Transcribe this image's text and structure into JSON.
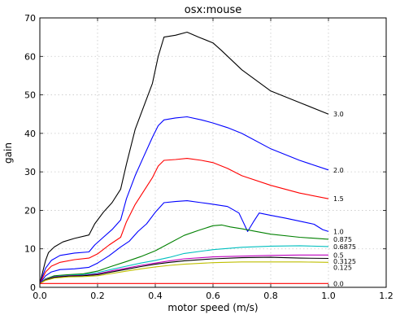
{
  "chart_data": {
    "type": "line",
    "title": "osx:mouse",
    "xlabel": "motor speed (m/s)",
    "ylabel": "gain",
    "xlim": [
      0.0,
      1.2
    ],
    "ylim": [
      0,
      70
    ],
    "xticks": [
      "0.0",
      "0.2",
      "0.4",
      "0.6",
      "0.8",
      "1.0",
      "1.2"
    ],
    "yticks": [
      "0",
      "10",
      "20",
      "30",
      "40",
      "50",
      "60",
      "70"
    ],
    "grid": true,
    "series": [
      {
        "name": "3.0",
        "color": "#000000",
        "x": [
          0,
          0.01,
          0.02,
          0.03,
          0.05,
          0.08,
          0.12,
          0.17,
          0.19,
          0.22,
          0.25,
          0.28,
          0.3,
          0.33,
          0.36,
          0.39,
          0.41,
          0.43,
          0.47,
          0.51,
          0.55,
          0.6,
          0.63,
          0.7,
          0.8,
          0.9,
          1.0
        ],
        "y": [
          1,
          4,
          7,
          9,
          10.5,
          11.8,
          12.7,
          13.6,
          16.5,
          19.5,
          22,
          25.5,
          32,
          41,
          47,
          53,
          60,
          65,
          65.5,
          66.3,
          65,
          63.5,
          61.5,
          56.5,
          51,
          48,
          45
        ]
      },
      {
        "name": "2.0",
        "color": "#0000ff",
        "x": [
          0,
          0.01,
          0.02,
          0.04,
          0.07,
          0.12,
          0.17,
          0.19,
          0.22,
          0.25,
          0.28,
          0.3,
          0.33,
          0.36,
          0.39,
          0.41,
          0.43,
          0.47,
          0.51,
          0.56,
          0.6,
          0.65,
          0.7,
          0.8,
          0.9,
          1.0
        ],
        "y": [
          1,
          3,
          5,
          7,
          8.3,
          8.9,
          9.2,
          11,
          13,
          15,
          17.5,
          23,
          29,
          34,
          39,
          42,
          43.5,
          44,
          44.3,
          43.5,
          42.7,
          41.5,
          40,
          36,
          33,
          30.5
        ]
      },
      {
        "name": "1.5",
        "color": "#ff0000",
        "x": [
          0,
          0.01,
          0.02,
          0.04,
          0.07,
          0.12,
          0.17,
          0.2,
          0.24,
          0.28,
          0.3,
          0.33,
          0.36,
          0.39,
          0.41,
          0.43,
          0.47,
          0.51,
          0.56,
          0.6,
          0.65,
          0.7,
          0.8,
          0.9,
          1.0
        ],
        "y": [
          1,
          2.5,
          4,
          5.5,
          6.5,
          7.2,
          7.6,
          8.7,
          11,
          13,
          17,
          21.5,
          25,
          28.5,
          31.5,
          33,
          33.2,
          33.5,
          33,
          32.4,
          30.9,
          29,
          26.5,
          24.5,
          23
        ]
      },
      {
        "name": "1.0",
        "color": "#0000ff",
        "x": [
          0,
          0.02,
          0.04,
          0.07,
          0.12,
          0.17,
          0.2,
          0.24,
          0.28,
          0.31,
          0.34,
          0.37,
          0.4,
          0.43,
          0.47,
          0.51,
          0.56,
          0.6,
          0.65,
          0.69,
          0.72,
          0.74,
          0.76,
          0.8,
          0.85,
          0.9,
          0.95,
          0.98,
          1.0
        ],
        "y": [
          1,
          3,
          4,
          4.6,
          4.8,
          5.2,
          6.3,
          8.2,
          10.5,
          12,
          14.5,
          16.5,
          19.5,
          22,
          22.3,
          22.5,
          22,
          21.6,
          21,
          19.3,
          14.5,
          17,
          19.3,
          18.7,
          18,
          17.2,
          16.4,
          15,
          14.5
        ]
      },
      {
        "name": "0.875",
        "color": "#008000",
        "x": [
          0,
          0.02,
          0.05,
          0.1,
          0.15,
          0.2,
          0.25,
          0.3,
          0.35,
          0.4,
          0.45,
          0.5,
          0.55,
          0.6,
          0.63,
          0.66,
          0.7,
          0.75,
          0.8,
          0.9,
          1.0
        ],
        "y": [
          1,
          2.2,
          3,
          3.3,
          3.5,
          4.2,
          5.5,
          6.7,
          8,
          9.5,
          11.5,
          13.5,
          14.8,
          16,
          16.2,
          15.7,
          15.2,
          14.5,
          13.8,
          13,
          12.5
        ]
      },
      {
        "name": "0.6875",
        "color": "#00bfbf",
        "x": [
          0,
          0.02,
          0.05,
          0.1,
          0.15,
          0.2,
          0.25,
          0.3,
          0.35,
          0.4,
          0.45,
          0.5,
          0.6,
          0.7,
          0.8,
          0.9,
          1.0
        ],
        "y": [
          1,
          2,
          2.8,
          3.1,
          3.3,
          3.8,
          4.7,
          5.5,
          6.3,
          7,
          7.8,
          8.8,
          9.8,
          10.4,
          10.7,
          10.8,
          10.6
        ]
      },
      {
        "name": "0.5",
        "color": "#bf00bf",
        "x": [
          0,
          0.02,
          0.05,
          0.1,
          0.15,
          0.2,
          0.25,
          0.3,
          0.35,
          0.4,
          0.45,
          0.5,
          0.6,
          0.7,
          0.8,
          0.9,
          1.0
        ],
        "y": [
          1,
          2,
          2.7,
          3,
          3.1,
          3.5,
          4.3,
          5,
          5.7,
          6.3,
          6.9,
          7.4,
          7.9,
          8.1,
          8.3,
          8.4,
          8.4
        ]
      },
      {
        "name": "0.3125",
        "color": "#000000",
        "x": [
          0,
          0.02,
          0.05,
          0.1,
          0.15,
          0.2,
          0.25,
          0.3,
          0.35,
          0.4,
          0.45,
          0.5,
          0.6,
          0.7,
          0.8,
          0.9,
          1.0
        ],
        "y": [
          1,
          1.9,
          2.6,
          2.9,
          3,
          3.3,
          4,
          4.7,
          5.4,
          6,
          6.5,
          6.9,
          7.4,
          7.7,
          7.8,
          7.6,
          7.5
        ]
      },
      {
        "name": "0.125",
        "color": "#bfbf00",
        "x": [
          0,
          0.02,
          0.05,
          0.1,
          0.15,
          0.2,
          0.25,
          0.3,
          0.35,
          0.4,
          0.45,
          0.5,
          0.6,
          0.7,
          0.8,
          0.9,
          1.0
        ],
        "y": [
          1,
          1.8,
          2.4,
          2.7,
          2.8,
          3,
          3.6,
          4.2,
          4.8,
          5.3,
          5.7,
          6,
          6.4,
          6.6,
          6.6,
          6.6,
          6.5
        ]
      },
      {
        "name": "0.0",
        "color": "#ff0000",
        "x": [
          0,
          0.5,
          1.0
        ],
        "y": [
          1,
          1,
          1
        ]
      }
    ]
  }
}
